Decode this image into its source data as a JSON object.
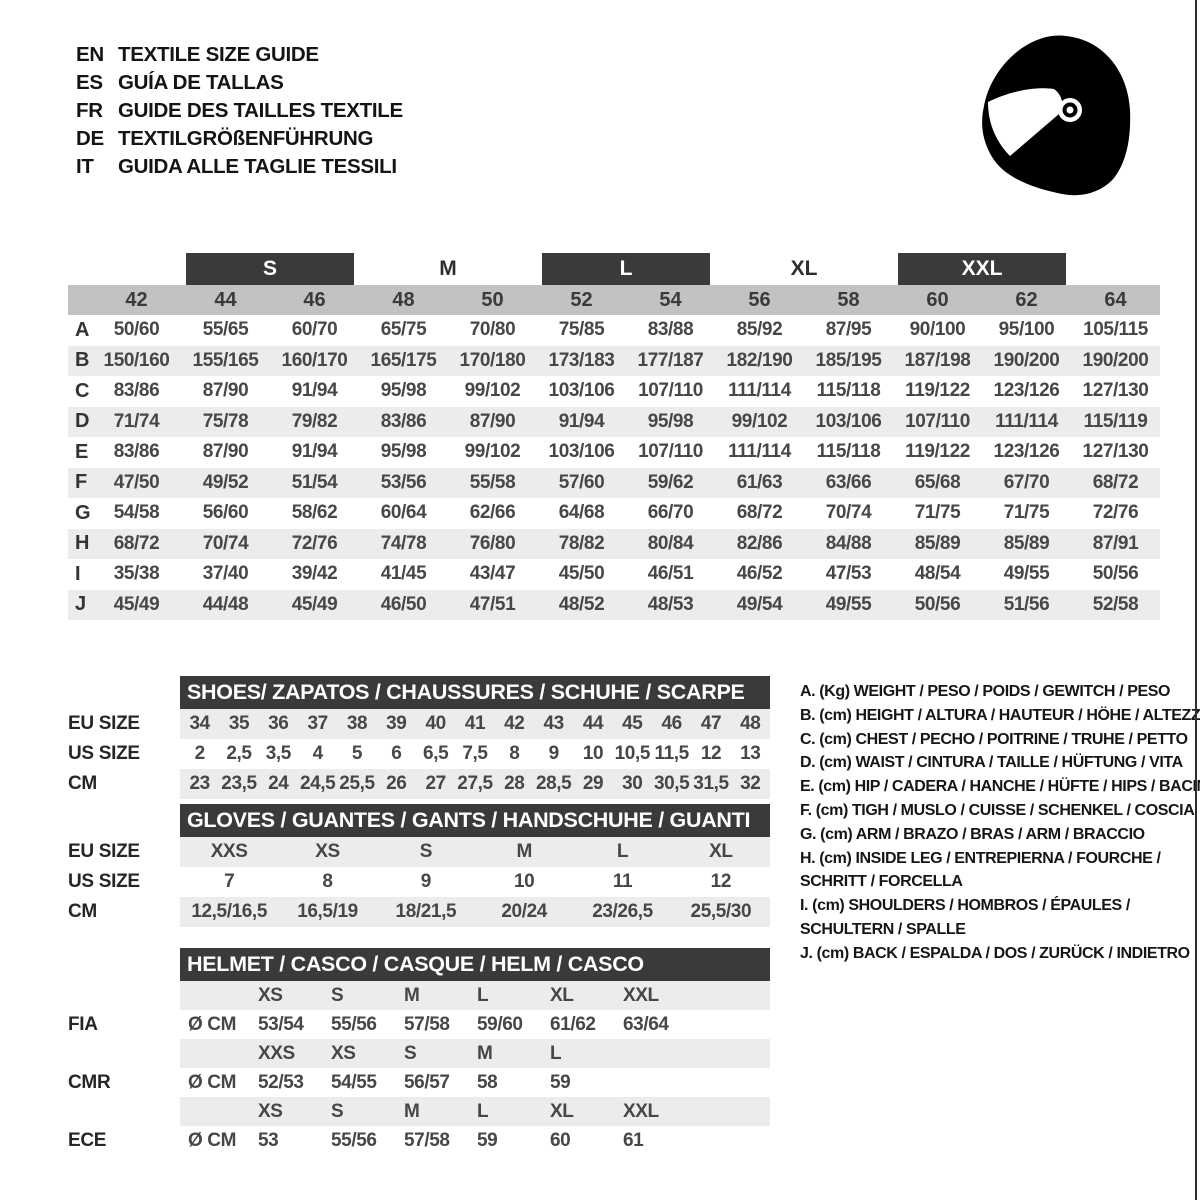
{
  "header": {
    "languages": [
      {
        "code": "EN",
        "title": "TEXTILE SIZE GUIDE"
      },
      {
        "code": "ES",
        "title": "GUÍA DE TALLAS"
      },
      {
        "code": "FR",
        "title": "GUIDE DES TAILLES TEXTILE"
      },
      {
        "code": "DE",
        "title": "TEXTILGRÖßENFÜHRUNG"
      },
      {
        "code": "IT",
        "title": "GUIDA ALLE TAGLIE TESSILI"
      }
    ]
  },
  "icons": {
    "helmet": "racing-helmet-icon"
  },
  "colors": {
    "dark_bar": "#3a3a3a",
    "size_band": "#c2c2c2",
    "stripe": "#ececec",
    "text": "#3d3d3d"
  },
  "main_table": {
    "groups": [
      {
        "label": "S",
        "filled": true
      },
      {
        "label": "M",
        "filled": false
      },
      {
        "label": "L",
        "filled": true
      },
      {
        "label": "XL",
        "filled": false
      },
      {
        "label": "XXL",
        "filled": true
      }
    ],
    "sizes": [
      "42",
      "44",
      "46",
      "48",
      "50",
      "52",
      "54",
      "56",
      "58",
      "60",
      "62",
      "64"
    ],
    "rows": [
      {
        "letter": "A",
        "values": [
          "50/60",
          "55/65",
          "60/70",
          "65/75",
          "70/80",
          "75/85",
          "83/88",
          "85/92",
          "87/95",
          "90/100",
          "95/100",
          "105/115"
        ]
      },
      {
        "letter": "B",
        "values": [
          "150/160",
          "155/165",
          "160/170",
          "165/175",
          "170/180",
          "173/183",
          "177/187",
          "182/190",
          "185/195",
          "187/198",
          "190/200",
          "190/200"
        ]
      },
      {
        "letter": "C",
        "values": [
          "83/86",
          "87/90",
          "91/94",
          "95/98",
          "99/102",
          "103/106",
          "107/110",
          "111/114",
          "115/118",
          "119/122",
          "123/126",
          "127/130"
        ]
      },
      {
        "letter": "D",
        "values": [
          "71/74",
          "75/78",
          "79/82",
          "83/86",
          "87/90",
          "91/94",
          "95/98",
          "99/102",
          "103/106",
          "107/110",
          "111/114",
          "115/119"
        ]
      },
      {
        "letter": "E",
        "values": [
          "83/86",
          "87/90",
          "91/94",
          "95/98",
          "99/102",
          "103/106",
          "107/110",
          "111/114",
          "115/118",
          "119/122",
          "123/126",
          "127/130"
        ]
      },
      {
        "letter": "F",
        "values": [
          "47/50",
          "49/52",
          "51/54",
          "53/56",
          "55/58",
          "57/60",
          "59/62",
          "61/63",
          "63/66",
          "65/68",
          "67/70",
          "68/72"
        ]
      },
      {
        "letter": "G",
        "values": [
          "54/58",
          "56/60",
          "58/62",
          "60/64",
          "62/66",
          "64/68",
          "66/70",
          "68/72",
          "70/74",
          "71/75",
          "71/75",
          "72/76"
        ]
      },
      {
        "letter": "H",
        "values": [
          "68/72",
          "70/74",
          "72/76",
          "74/78",
          "76/80",
          "78/82",
          "80/84",
          "82/86",
          "84/88",
          "85/89",
          "85/89",
          "87/91"
        ]
      },
      {
        "letter": "I",
        "values": [
          "35/38",
          "37/40",
          "39/42",
          "41/45",
          "43/47",
          "45/50",
          "46/51",
          "46/52",
          "47/53",
          "48/54",
          "49/55",
          "50/56"
        ]
      },
      {
        "letter": "J",
        "values": [
          "45/49",
          "44/48",
          "45/49",
          "46/50",
          "47/51",
          "48/52",
          "48/53",
          "49/54",
          "49/55",
          "50/56",
          "51/56",
          "52/58"
        ]
      }
    ]
  },
  "shoes": {
    "title": "SHOES/ ZAPATOS / CHAUSSURES / SCHUHE / SCARPE",
    "rows": [
      {
        "label": "EU SIZE",
        "values": [
          "34",
          "35",
          "36",
          "37",
          "38",
          "39",
          "40",
          "41",
          "42",
          "43",
          "44",
          "45",
          "46",
          "47",
          "48"
        ]
      },
      {
        "label": "US SIZE",
        "values": [
          "2",
          "2,5",
          "3,5",
          "4",
          "5",
          "6",
          "6,5",
          "7,5",
          "8",
          "9",
          "10",
          "10,5",
          "11,5",
          "12",
          "13"
        ]
      },
      {
        "label": "CM",
        "values": [
          "23",
          "23,5",
          "24",
          "24,5",
          "25,5",
          "26",
          "27",
          "27,5",
          "28",
          "28,5",
          "29",
          "30",
          "30,5",
          "31,5",
          "32"
        ]
      }
    ]
  },
  "gloves": {
    "title": "GLOVES / GUANTES / GANTS / HANDSCHUHE / GUANTI",
    "rows": [
      {
        "label": "EU SIZE",
        "values": [
          "XXS",
          "XS",
          "S",
          "M",
          "L",
          "XL"
        ]
      },
      {
        "label": "US SIZE",
        "values": [
          "7",
          "8",
          "9",
          "10",
          "11",
          "12"
        ]
      },
      {
        "label": "CM",
        "values": [
          "12,5/16,5",
          "16,5/19",
          "18/21,5",
          "20/24",
          "23/26,5",
          "25,5/30"
        ]
      }
    ]
  },
  "helmet": {
    "title": "HELMET / CASCO / CASQUE / HELM / CASCO",
    "sections": [
      {
        "label": "FIA",
        "unit": "Ø CM",
        "sizes": [
          "XS",
          "S",
          "M",
          "L",
          "XL",
          "XXL"
        ],
        "values": [
          "53/54",
          "55/56",
          "57/58",
          "59/60",
          "61/62",
          "63/64"
        ]
      },
      {
        "label": "CMR",
        "unit": "Ø CM",
        "sizes": [
          "XXS",
          "XS",
          "S",
          "M",
          "L"
        ],
        "values": [
          "52/53",
          "54/55",
          "56/57",
          "58",
          "59"
        ]
      },
      {
        "label": "ECE",
        "unit": "Ø CM",
        "sizes": [
          "XS",
          "S",
          "M",
          "L",
          "XL",
          "XXL"
        ],
        "values": [
          "53",
          "55/56",
          "57/58",
          "59",
          "60",
          "61"
        ]
      }
    ]
  },
  "legend": {
    "lines": [
      "A. (Kg) WEIGHT / PESO / POIDS / GEWITCH / PESO",
      "B. (cm) HEIGHT / ALTURA / HAUTEUR / HÖHE / ALTEZZA",
      "C. (cm) CHEST / PECHO / POITRINE / TRUHE / PETTO",
      "D. (cm) WAIST / CINTURA / TAILLE / HÜFTUNG / VITA",
      "E. (cm) HIP / CADERA / HANCHE / HÜFTE / HIPS /  BACINO",
      "F. (cm) TIGH / MUSLO / CUISSE / SCHENKEL / COSCIA",
      "G. (cm) ARM  / BRAZO / BRAS / ARM / BRACCIO",
      "H. (cm) INSIDE LEG / ENTREPIERNA / FOURCHE /",
      "SCHRITT / FORCELLA",
      "I.  (cm) SHOULDERS / HOMBROS / ÉPAULES /",
      "SCHULTERN / SPALLE",
      "J. (cm) BACK / ESPALDA / DOS / ZURÜCK / INDIETRO"
    ]
  }
}
